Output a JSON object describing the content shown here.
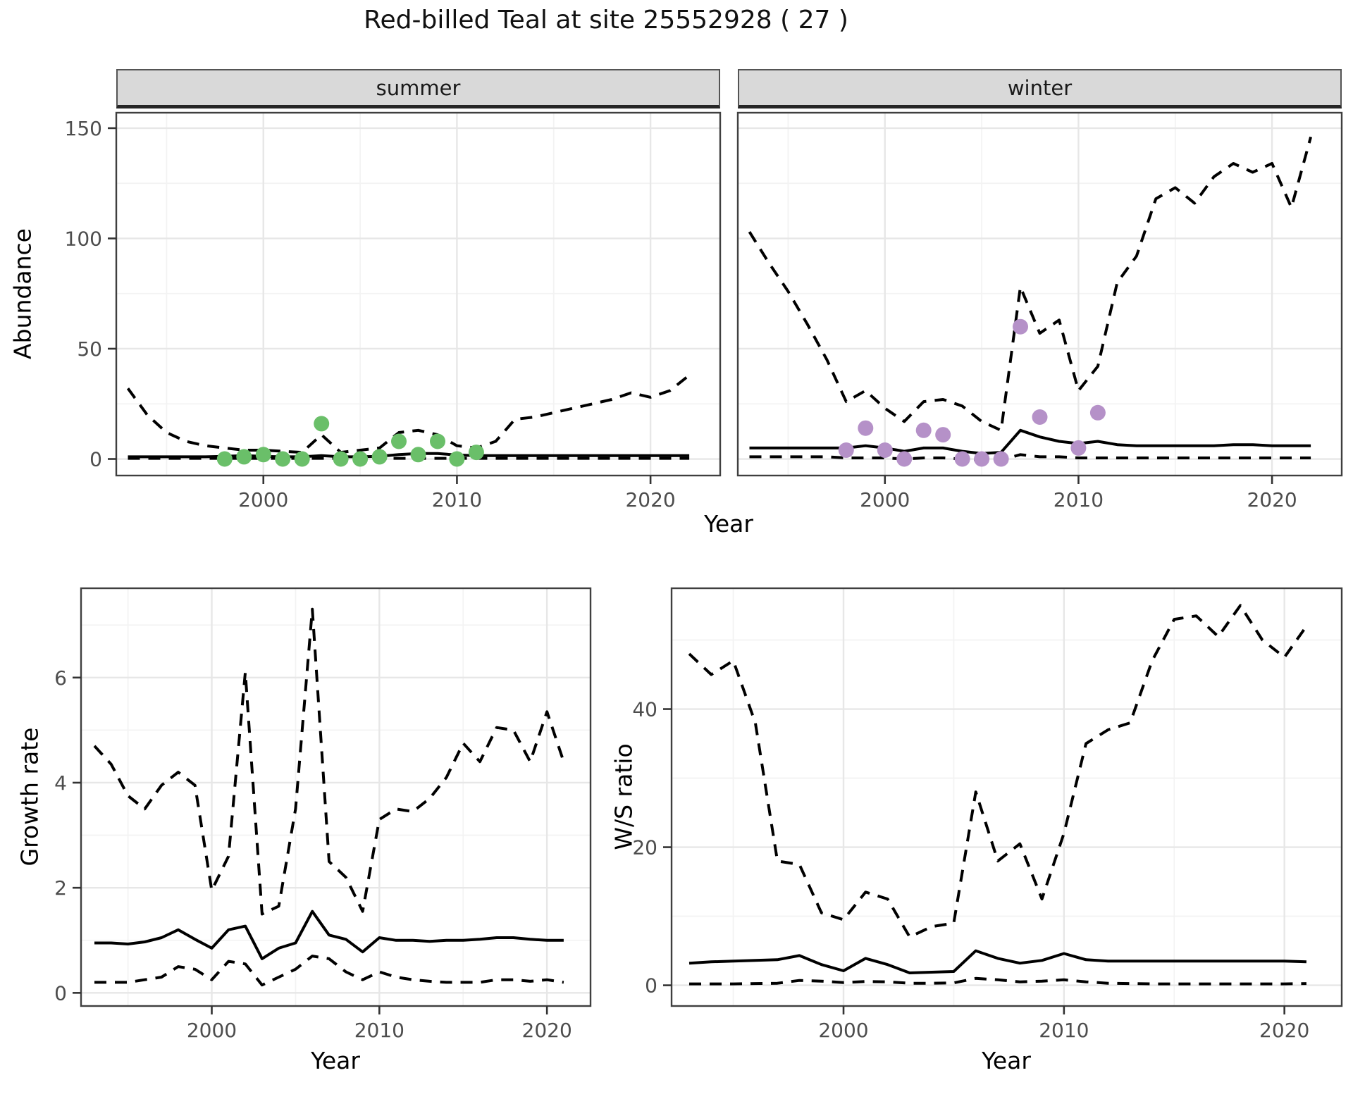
{
  "title": "Red-billed Teal at site 25552928 ( 27 )",
  "colors": {
    "summer_point": "#6abf69",
    "winter_point": "#b591c8",
    "line": "#000000",
    "grid_major": "#e7e7e7",
    "grid_minor": "#f3f3f3",
    "panel_border": "#3f3f3f",
    "strip_bg": "#d9d9d9",
    "axis_text": "#4d4d4d"
  },
  "labels": {
    "abundance_axis": "Abundance",
    "growth_axis": "Growth rate",
    "ws_axis": "W/S ratio",
    "year_axis_top": "Year",
    "year_axis_growth": "Year",
    "year_axis_ws": "Year"
  },
  "top": {
    "facets": [
      {
        "label": "summer"
      },
      {
        "label": "winter"
      }
    ]
  },
  "chart_data": [
    {
      "id": "abundance_summer",
      "type": "line",
      "facet": "summer",
      "xlabel": "Year",
      "ylabel": "Abundance",
      "xlim": [
        1992.4,
        2023.6
      ],
      "ylim": [
        -7.5,
        157
      ],
      "xticks": [
        2000,
        2010,
        2020
      ],
      "yticks": [
        0,
        50,
        100,
        150
      ],
      "xticks_minor": [
        1995,
        2005,
        2015
      ],
      "yticks_minor": [
        25,
        75,
        125
      ],
      "show_yticks": true,
      "years": [
        1993,
        1994,
        1995,
        1996,
        1997,
        1998,
        1999,
        2000,
        2001,
        2002,
        2003,
        2004,
        2005,
        2006,
        2007,
        2008,
        2009,
        2010,
        2011,
        2012,
        2013,
        2014,
        2015,
        2016,
        2017,
        2018,
        2019,
        2020,
        2021,
        2022
      ],
      "series": [
        {
          "name": "upper-ci",
          "style": "dashed",
          "values": [
            32,
            20,
            12,
            8,
            6,
            5,
            4,
            4,
            3.5,
            3,
            11,
            3,
            4,
            5,
            12,
            13,
            11,
            6,
            5,
            8,
            18,
            19,
            21,
            23,
            25,
            27,
            30,
            28,
            31,
            38
          ]
        },
        {
          "name": "median",
          "style": "solid",
          "values": [
            1,
            1,
            1,
            1,
            1,
            1.2,
            1.5,
            1.2,
            1,
            1,
            1.5,
            1,
            1,
            1.2,
            2,
            2.5,
            2.5,
            1.8,
            1.5,
            1.5,
            1.5,
            1.5,
            1.5,
            1.5,
            1.5,
            1.5,
            1.5,
            1.5,
            1.5,
            1.5
          ]
        },
        {
          "name": "lower-ci",
          "style": "dashed",
          "values": [
            0.3,
            0.3,
            0.3,
            0.3,
            0.3,
            0.3,
            0.3,
            0.3,
            0.3,
            0.3,
            0.3,
            0.3,
            0.3,
            0.3,
            0.3,
            0.3,
            0.3,
            0.3,
            0.3,
            0.3,
            0.3,
            0.3,
            0.3,
            0.3,
            0.3,
            0.3,
            0.3,
            0.3,
            0.3,
            0.3
          ]
        }
      ],
      "points": {
        "name": "observed-counts-summer",
        "color_key": "summer_point",
        "years": [
          1998,
          1999,
          2000,
          2001,
          2002,
          2003,
          2004,
          2005,
          2006,
          2007,
          2008,
          2009,
          2010,
          2011
        ],
        "values": [
          0,
          1,
          2,
          0,
          0,
          16,
          0,
          0,
          1,
          8,
          2,
          8,
          0,
          3
        ]
      }
    },
    {
      "id": "abundance_winter",
      "type": "line",
      "facet": "winter",
      "xlabel": "Year",
      "ylabel": "Abundance",
      "xlim": [
        1992.4,
        2023.6
      ],
      "ylim": [
        -7.5,
        157
      ],
      "xticks": [
        2000,
        2010,
        2020
      ],
      "yticks": [
        0,
        50,
        100,
        150
      ],
      "xticks_minor": [
        1995,
        2005,
        2015
      ],
      "yticks_minor": [
        25,
        75,
        125
      ],
      "show_yticks": false,
      "years": [
        1993,
        1994,
        1995,
        1996,
        1997,
        1998,
        1999,
        2000,
        2001,
        2002,
        2003,
        2004,
        2005,
        2006,
        2007,
        2008,
        2009,
        2010,
        2011,
        2012,
        2013,
        2014,
        2015,
        2016,
        2017,
        2018,
        2019,
        2020,
        2021,
        2022
      ],
      "series": [
        {
          "name": "upper-ci",
          "style": "dashed",
          "values": [
            103,
            89,
            76,
            61,
            45,
            26,
            31,
            23,
            17,
            26,
            27,
            24,
            17,
            13,
            78,
            57,
            63,
            31,
            42,
            80,
            92,
            118,
            123,
            116,
            128,
            134,
            130,
            134,
            114,
            146
          ]
        },
        {
          "name": "median",
          "style": "solid",
          "values": [
            5,
            5,
            5,
            5,
            5,
            5,
            6,
            5,
            3.5,
            5,
            5,
            3.5,
            2.5,
            3,
            13,
            10,
            8,
            7,
            8,
            6.5,
            6,
            6,
            6,
            6,
            6,
            6.5,
            6.5,
            6,
            6,
            6
          ]
        },
        {
          "name": "lower-ci",
          "style": "dashed",
          "values": [
            1,
            1,
            1,
            1,
            1,
            0.5,
            0.5,
            0.5,
            0,
            0.5,
            0.5,
            0,
            -0.5,
            -0.5,
            2,
            1,
            1,
            0.5,
            0.5,
            0.5,
            0.5,
            0.5,
            0.5,
            0.5,
            0.5,
            0.5,
            0.5,
            0.5,
            0.5,
            0.5
          ]
        }
      ],
      "points": {
        "name": "observed-counts-winter",
        "color_key": "winter_point",
        "years": [
          1998,
          1999,
          2000,
          2001,
          2002,
          2003,
          2004,
          2005,
          2006,
          2007,
          2008,
          2010,
          2011
        ],
        "values": [
          4,
          14,
          4,
          0,
          13,
          11,
          0,
          0,
          0,
          60,
          19,
          5,
          21
        ]
      }
    },
    {
      "id": "growth_rate",
      "type": "line",
      "xlabel": "Year",
      "ylabel": "Growth rate",
      "xlim": [
        1992.2,
        2022.6
      ],
      "ylim": [
        -0.25,
        7.7
      ],
      "xticks": [
        2000,
        2010,
        2020
      ],
      "yticks": [
        0,
        2,
        4,
        6
      ],
      "xticks_minor": [
        1995,
        2005,
        2015
      ],
      "yticks_minor": [
        1,
        3,
        5,
        7
      ],
      "show_yticks": true,
      "years": [
        1993,
        1994,
        1995,
        1996,
        1997,
        1998,
        1999,
        2000,
        2001,
        2002,
        2003,
        2004,
        2005,
        2006,
        2007,
        2008,
        2009,
        2010,
        2011,
        2012,
        2013,
        2014,
        2015,
        2016,
        2017,
        2018,
        2019,
        2020,
        2021
      ],
      "series": [
        {
          "name": "upper-ci",
          "style": "dashed",
          "values": [
            4.7,
            4.35,
            3.75,
            3.5,
            3.95,
            4.2,
            3.95,
            1.95,
            2.6,
            6.1,
            1.5,
            1.65,
            3.5,
            7.3,
            2.5,
            2.2,
            1.55,
            3.3,
            3.5,
            3.45,
            3.7,
            4.1,
            4.75,
            4.4,
            5.05,
            5.0,
            4.4,
            5.35,
            4.4
          ]
        },
        {
          "name": "median",
          "style": "solid",
          "values": [
            0.95,
            0.95,
            0.93,
            0.97,
            1.05,
            1.2,
            1.02,
            0.85,
            1.2,
            1.27,
            0.65,
            0.85,
            0.95,
            1.55,
            1.1,
            1.02,
            0.78,
            1.05,
            1.0,
            1.0,
            0.98,
            1.0,
            1.0,
            1.02,
            1.05,
            1.05,
            1.02,
            1.0,
            1.0
          ]
        },
        {
          "name": "lower-ci",
          "style": "dashed",
          "values": [
            0.2,
            0.2,
            0.2,
            0.25,
            0.3,
            0.5,
            0.45,
            0.25,
            0.6,
            0.55,
            0.15,
            0.3,
            0.45,
            0.7,
            0.65,
            0.4,
            0.25,
            0.4,
            0.3,
            0.25,
            0.22,
            0.2,
            0.2,
            0.2,
            0.25,
            0.25,
            0.22,
            0.25,
            0.2
          ]
        }
      ]
    },
    {
      "id": "ws_ratio",
      "type": "line",
      "xlabel": "Year",
      "ylabel": "W/S ratio",
      "xlim": [
        1992.2,
        2022.6
      ],
      "ylim": [
        -3,
        57.5
      ],
      "xticks": [
        2000,
        2010,
        2020
      ],
      "yticks": [
        0,
        20,
        40
      ],
      "xticks_minor": [
        1995,
        2005,
        2015
      ],
      "yticks_minor": [
        10,
        30,
        50
      ],
      "show_yticks": true,
      "years": [
        1993,
        1994,
        1995,
        1996,
        1997,
        1998,
        1999,
        2000,
        2001,
        2002,
        2003,
        2004,
        2005,
        2006,
        2007,
        2008,
        2009,
        2010,
        2011,
        2012,
        2013,
        2014,
        2015,
        2016,
        2017,
        2018,
        2019,
        2020,
        2021
      ],
      "series": [
        {
          "name": "upper-ci",
          "style": "dashed",
          "values": [
            48,
            45,
            47,
            38,
            18,
            17.5,
            10.5,
            9.5,
            13.5,
            12.5,
            7,
            8.5,
            9,
            28,
            18,
            20.5,
            12.5,
            22,
            35,
            37,
            38,
            47,
            53,
            53.5,
            50.5,
            55,
            50,
            47.5,
            52
          ]
        },
        {
          "name": "median",
          "style": "solid",
          "values": [
            3.2,
            3.4,
            3.5,
            3.6,
            3.7,
            4.3,
            3.0,
            2.1,
            3.9,
            3.0,
            1.8,
            1.9,
            2.0,
            5.0,
            3.9,
            3.2,
            3.6,
            4.6,
            3.7,
            3.5,
            3.5,
            3.5,
            3.5,
            3.5,
            3.5,
            3.5,
            3.5,
            3.5,
            3.4
          ]
        },
        {
          "name": "lower-ci",
          "style": "dashed",
          "values": [
            0.2,
            0.2,
            0.2,
            0.25,
            0.3,
            0.7,
            0.6,
            0.4,
            0.55,
            0.5,
            0.3,
            0.3,
            0.35,
            1.0,
            0.8,
            0.5,
            0.6,
            0.8,
            0.5,
            0.3,
            0.25,
            0.2,
            0.2,
            0.2,
            0.2,
            0.2,
            0.2,
            0.2,
            0.25
          ]
        }
      ]
    }
  ]
}
